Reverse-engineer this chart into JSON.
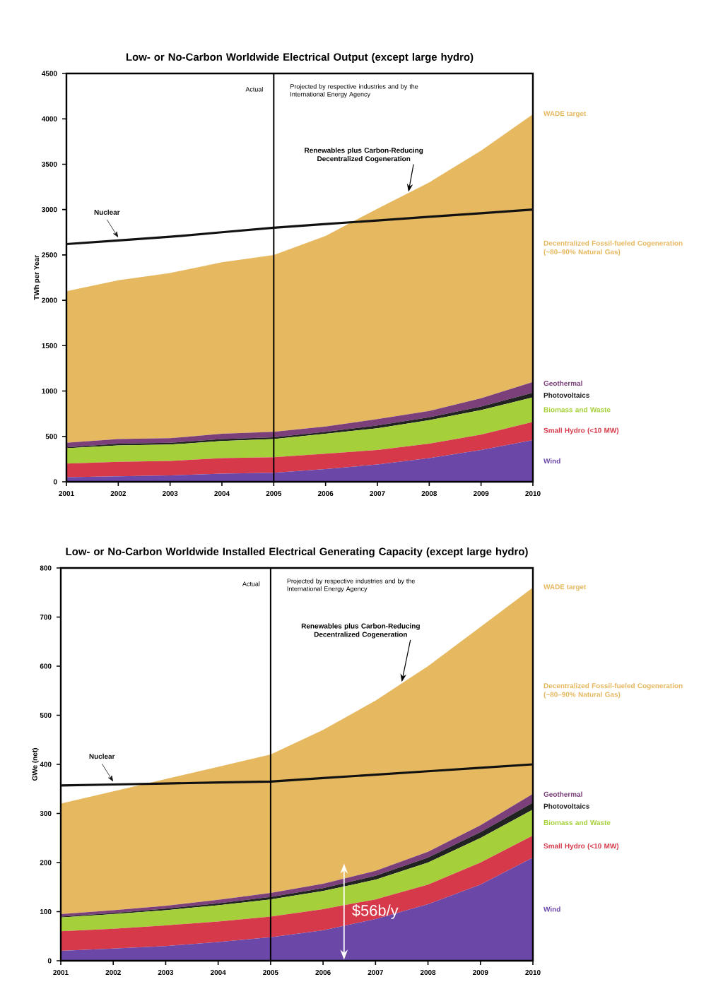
{
  "chart_data": [
    {
      "type": "area",
      "stacked": true,
      "title": "Low- or No-Carbon Worldwide Electrical Output (except large hydro)",
      "ylabel": "TWh per Year",
      "x": [
        2001,
        2002,
        2003,
        2004,
        2005,
        2006,
        2007,
        2008,
        2009,
        2010
      ],
      "xlim": [
        2001,
        2010
      ],
      "xticks": [
        2001,
        2002,
        2003,
        2004,
        2005,
        2006,
        2007,
        2008,
        2009,
        2010
      ],
      "ylim": [
        0,
        4500
      ],
      "yticks": [
        0,
        500,
        1000,
        1500,
        2000,
        2500,
        3000,
        3500,
        4000,
        4500
      ],
      "series": [
        {
          "name": "Wind",
          "color": "#6b48a8",
          "values": [
            50,
            60,
            70,
            90,
            100,
            140,
            190,
            260,
            350,
            460
          ]
        },
        {
          "name": "Small Hydro (<10 MW)",
          "color": "#d63a4a",
          "values": [
            150,
            160,
            160,
            170,
            170,
            170,
            160,
            160,
            170,
            200
          ]
        },
        {
          "name": "Biomass and Waste",
          "color": "#a6d03a",
          "values": [
            170,
            180,
            180,
            190,
            200,
            220,
            240,
            260,
            270,
            270
          ]
        },
        {
          "name": "Photovoltaics",
          "color": "#222222",
          "values": [
            10,
            20,
            20,
            20,
            20,
            20,
            30,
            30,
            40,
            50
          ]
        },
        {
          "name": "Geothermal",
          "color": "#7b3f7a",
          "values": [
            50,
            50,
            50,
            60,
            60,
            60,
            70,
            70,
            90,
            120
          ]
        },
        {
          "name": "Decentralized Fossil-fueled Cogeneration (~80–90% Natural Gas)",
          "color": "#e6b860",
          "values": [
            1670,
            1750,
            1820,
            1890,
            1950,
            2100,
            2320,
            2520,
            2730,
            2950
          ]
        },
        {
          "name": "Nuclear",
          "type": "line",
          "color": "#111111",
          "values": [
            2620,
            2660,
            2700,
            2750,
            2800,
            2840,
            2880,
            2920,
            2960,
            3000
          ]
        }
      ],
      "ref_lines": [
        {
          "axis": "x",
          "value": 2005,
          "label": "Actual"
        }
      ],
      "annotations": [
        {
          "text": "Renewables plus Carbon-Reducing Decentralized Cogeneration",
          "x": 2007.6,
          "y": 3180
        },
        {
          "text": "WADE target",
          "x": 2010,
          "y": 4050
        },
        "Projected by respective industries and by the International Energy Agency"
      ]
    },
    {
      "type": "area",
      "stacked": true,
      "title": "Low- or No-Carbon Worldwide Installed Electrical Generating Capacity (except large hydro)",
      "ylabel": "GWe (net)",
      "x": [
        2001,
        2002,
        2003,
        2004,
        2005,
        2006,
        2007,
        2008,
        2009,
        2010
      ],
      "xlim": [
        2001,
        2010
      ],
      "xticks": [
        2001,
        2002,
        2003,
        2004,
        2005,
        2006,
        2007,
        2008,
        2009,
        2010
      ],
      "ylim": [
        0,
        800
      ],
      "yticks": [
        0,
        100,
        200,
        300,
        400,
        500,
        600,
        700,
        800
      ],
      "series": [
        {
          "name": "Wind",
          "color": "#6b48a8",
          "values": [
            20,
            25,
            30,
            38,
            48,
            62,
            85,
            115,
            155,
            210
          ]
        },
        {
          "name": "Small Hydro (<10 MW)",
          "color": "#d63a4a",
          "values": [
            40,
            40,
            42,
            42,
            42,
            43,
            40,
            40,
            45,
            45
          ]
        },
        {
          "name": "Biomass and Waste",
          "color": "#a6d03a",
          "values": [
            28,
            30,
            31,
            33,
            35,
            37,
            40,
            45,
            50,
            53
          ]
        },
        {
          "name": "Photovoltaics",
          "color": "#222222",
          "values": [
            2,
            2,
            3,
            4,
            5,
            6,
            8,
            10,
            12,
            14
          ]
        },
        {
          "name": "Geothermal",
          "color": "#7b3f7a",
          "values": [
            5,
            6,
            6,
            7,
            8,
            9,
            10,
            12,
            14,
            18
          ]
        },
        {
          "name": "Decentralized Fossil-fueled Cogeneration (~80–90% Natural Gas)",
          "color": "#e6b860",
          "values": [
            225,
            242,
            258,
            271,
            282,
            313,
            347,
            378,
            404,
            420
          ]
        },
        {
          "name": "Nuclear",
          "type": "line",
          "color": "#111111",
          "values": [
            357,
            359,
            361,
            363,
            365,
            372,
            379,
            386,
            393,
            400
          ]
        }
      ],
      "ref_lines": [
        {
          "axis": "x",
          "value": 2005,
          "label": "Actual"
        }
      ],
      "annotations": [
        {
          "text": "Renewables plus Carbon-Reducing Decentralized Cogeneration",
          "x": 2007.5,
          "y": 565
        },
        {
          "text": "WADE target",
          "x": 2010,
          "y": 760
        },
        "Projected by respective industries and by the International Energy Agency",
        {
          "text": "$56b/y",
          "x": 2006.4,
          "y": 100
        }
      ]
    }
  ]
}
